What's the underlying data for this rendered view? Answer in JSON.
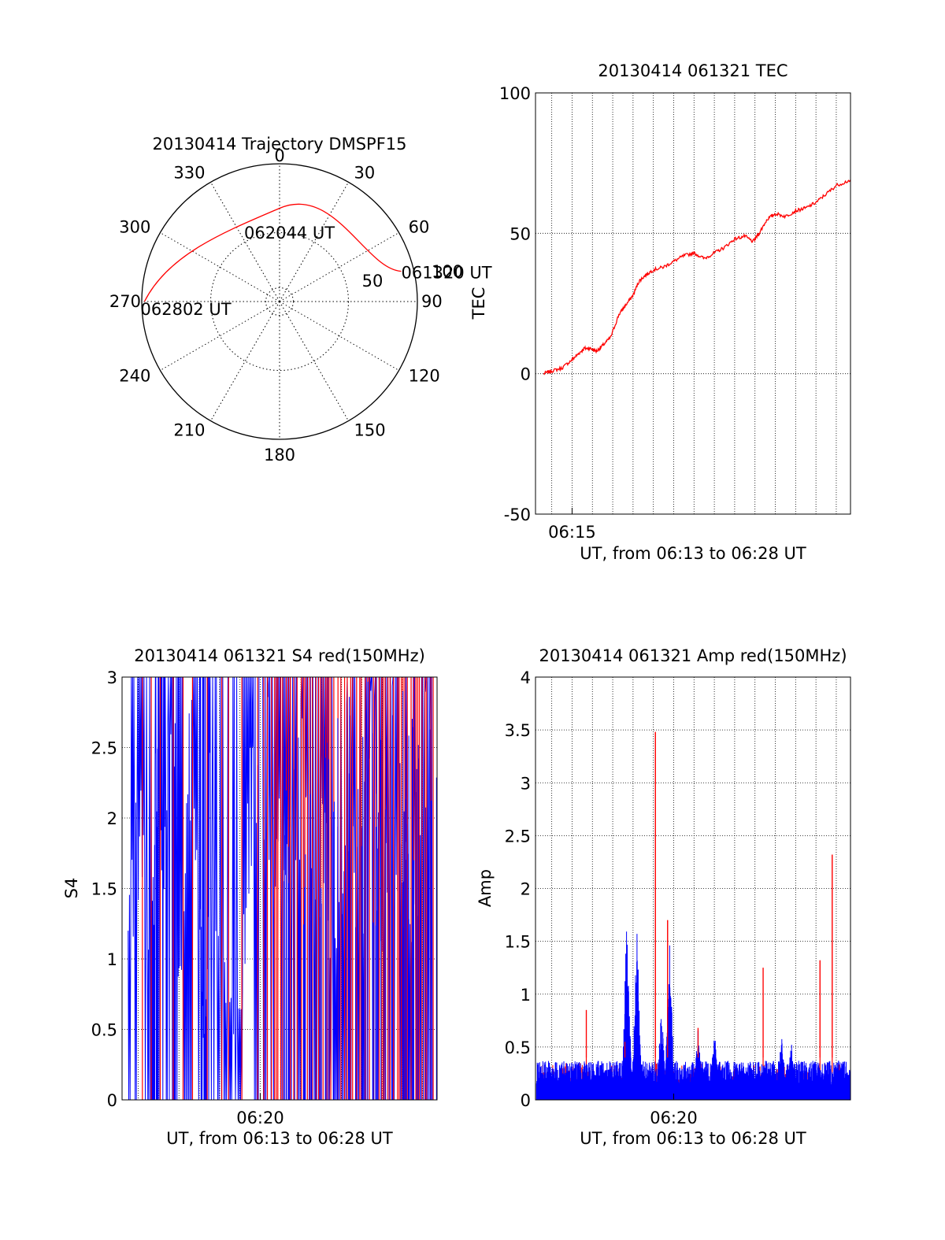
{
  "colors": {
    "red": "#ff0000",
    "blue": "#0000ff",
    "axis": "#000000",
    "grid": "#000000"
  },
  "polar": {
    "title": "20130414 Trajectory DMSPF15",
    "azimuth_labels": [
      "0",
      "30",
      "60",
      "90",
      "120",
      "150",
      "180",
      "210",
      "240",
      "270",
      "300",
      "330"
    ],
    "radial_labels": [
      "50",
      "100"
    ],
    "trajectory_points": [
      {
        "label": "061320 UT",
        "az": 76,
        "zen": 91
      },
      {
        "label": "062044 UT",
        "az": 0,
        "zen": 82
      },
      {
        "label": "062802 UT",
        "az": 270,
        "zen": 98
      }
    ]
  },
  "chart_data": [
    {
      "id": "tec",
      "type": "line",
      "title": "20130414 061321 TEC",
      "xlabel": "UT, from 06:13 to 06:28 UT",
      "ylabel": "TEC",
      "x_range_minutes": [
        373.2,
        388.7
      ],
      "x_ticks": [
        {
          "t": 375,
          "label": "06:15"
        }
      ],
      "ylim": [
        -50,
        100
      ],
      "y_ticks": [
        -50,
        0,
        50,
        100
      ],
      "grid": true,
      "series": [
        {
          "color": "red",
          "x": [
            373.6,
            374.0,
            374.5,
            375.0,
            375.3,
            375.6,
            375.9,
            376.2,
            376.5,
            376.9,
            377.3,
            377.6,
            378.0,
            378.3,
            378.6,
            379.0,
            379.5,
            380.0,
            380.5,
            381.0,
            381.5,
            382.0,
            382.5,
            383.0,
            383.5,
            383.9,
            384.2,
            384.6,
            385.0,
            385.5,
            386.0,
            386.5,
            387.0,
            387.5,
            388.0,
            388.7
          ],
          "values": [
            0,
            1,
            2,
            5,
            7,
            9,
            9,
            8,
            10,
            13,
            21,
            24,
            28,
            33,
            35,
            37,
            38,
            40,
            42,
            43,
            41,
            43,
            45,
            48,
            49,
            47,
            50,
            55,
            57,
            56,
            58,
            59,
            61,
            64,
            67,
            69
          ]
        }
      ]
    },
    {
      "id": "s4",
      "type": "line",
      "title": "20130414 061321 S4 red(150MHz)",
      "xlabel": "UT, from 06:13 to 06:28 UT",
      "ylabel": "S4",
      "x_range_minutes": [
        373.2,
        388.7
      ],
      "x_ticks": [
        {
          "t": 380,
          "label": "06:20"
        }
      ],
      "ylim": [
        0,
        3
      ],
      "y_ticks": [
        0,
        0.5,
        1,
        1.5,
        2,
        2.5,
        3
      ],
      "grid": true,
      "series": [
        {
          "color": "blue",
          "name": "",
          "values_note": ""
        },
        {
          "color": "red",
          "name": ""
        }
      ],
      "blue_segments": [
        {
          "x": [
            373.5,
            374.0,
            374.5,
            374.8,
            375.0,
            375.3,
            375.7,
            376.0,
            376.5,
            377.0,
            377.2,
            377.3,
            377.5,
            378.0,
            378.5,
            379.0,
            379.5,
            380.0,
            380.5,
            381.0,
            381.5,
            382.0,
            382.5,
            383.0,
            383.5,
            384.0,
            384.5,
            385.0,
            385.5,
            386.0,
            386.5,
            387.0,
            387.5,
            388.0,
            388.5
          ],
          "values": [
            1.1,
            2.0,
            1.5,
            1.7,
            3.0,
            1.5,
            3.0,
            0.9,
            2.5,
            1.5,
            0.4,
            0.5,
            2.0,
            1.0,
            0.6,
            0.5,
            2.0,
            3.0,
            2.0,
            1.8,
            1.5,
            2.3,
            1.3,
            2.4,
            1.0,
            2.0,
            2.4,
            1.5,
            2.6,
            1.3,
            2.5,
            1.7,
            1.2,
            2.5,
            3.0
          ]
        }
      ]
    },
    {
      "id": "amp",
      "type": "bar",
      "title": "20130414 061321 Amp red(150MHz)",
      "xlabel": "UT, from 06:13 to 06:28 UT",
      "ylabel": "Amp",
      "x_range_minutes": [
        373.2,
        388.7
      ],
      "x_ticks": [
        {
          "t": 380,
          "label": "06:20"
        }
      ],
      "ylim": [
        0,
        4
      ],
      "y_ticks": [
        0,
        0.5,
        1,
        1.5,
        2,
        2.5,
        3,
        3.5,
        4
      ],
      "grid": true,
      "red_spikes": [
        {
          "t": 375.7,
          "v": 0.85
        },
        {
          "t": 377.6,
          "v": 0.55
        },
        {
          "t": 379.1,
          "v": 3.48
        },
        {
          "t": 379.7,
          "v": 1.7
        },
        {
          "t": 381.2,
          "v": 0.68
        },
        {
          "t": 384.4,
          "v": 1.25
        },
        {
          "t": 387.2,
          "v": 1.32
        },
        {
          "t": 387.8,
          "v": 2.32
        }
      ],
      "blue_peaks": [
        {
          "t": 377.7,
          "v": 1.8
        },
        {
          "t": 378.2,
          "v": 1.75
        },
        {
          "t": 379.4,
          "v": 0.9
        },
        {
          "t": 379.8,
          "v": 1.5
        },
        {
          "t": 381.2,
          "v": 0.7
        },
        {
          "t": 382.0,
          "v": 0.7
        },
        {
          "t": 385.3,
          "v": 0.65
        },
        {
          "t": 385.8,
          "v": 0.6
        }
      ]
    }
  ]
}
